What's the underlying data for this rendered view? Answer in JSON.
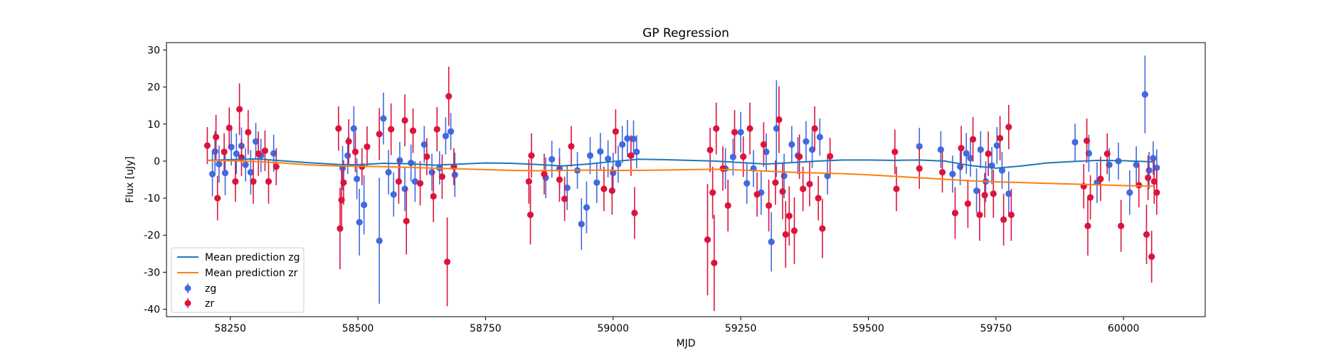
{
  "chart_data": {
    "type": "scatter",
    "title": "GP Regression",
    "xlabel": "MJD",
    "ylabel": "Flux [uJy]",
    "xlim": [
      58125,
      60160
    ],
    "ylim": [
      -42,
      32
    ],
    "xticks": [
      58250,
      58500,
      58750,
      59000,
      59250,
      59500,
      59750,
      60000
    ],
    "yticks": [
      -40,
      -30,
      -20,
      -10,
      0,
      10,
      20,
      30
    ],
    "grid": false,
    "legend_position": "lower-left",
    "legend": [
      {
        "label": "Mean prediction zg",
        "kind": "line",
        "color": "#1f77b4"
      },
      {
        "label": "Mean prediction zr",
        "kind": "line",
        "color": "#ff7f0e"
      },
      {
        "label": "zg",
        "kind": "errorbar",
        "color": "#4169e1"
      },
      {
        "label": "zr",
        "kind": "errorbar",
        "color": "#dc143c"
      }
    ],
    "lines": [
      {
        "name": "Mean prediction zg",
        "color": "#1f77b4",
        "x": [
          58205,
          58250,
          58300,
          58350,
          58400,
          58460,
          58500,
          58550,
          58600,
          58650,
          58700,
          58750,
          58800,
          58850,
          58900,
          58950,
          59000,
          59050,
          59100,
          59150,
          59200,
          59250,
          59300,
          59350,
          59400,
          59450,
          59500,
          59550,
          59600,
          59650,
          59700,
          59750,
          59800,
          59850,
          59900,
          59950,
          60000,
          60060
        ],
        "y": [
          0.2,
          0.4,
          0.6,
          0.1,
          -0.4,
          -0.9,
          -1.0,
          -0.6,
          -0.7,
          -1.1,
          -0.8,
          -0.5,
          -0.6,
          -0.9,
          -1.3,
          -0.8,
          -0.1,
          0.5,
          0.4,
          0.2,
          0.0,
          -0.4,
          -0.8,
          -0.4,
          0.0,
          0.3,
          0.3,
          0.2,
          0.3,
          0.0,
          -1.2,
          -1.9,
          -1.3,
          -0.5,
          -0.1,
          0.2,
          0.1,
          -0.2
        ]
      },
      {
        "name": "Mean prediction zr",
        "color": "#ff7f0e",
        "x": [
          58205,
          58250,
          58300,
          58350,
          58400,
          58460,
          58500,
          58550,
          58600,
          58650,
          58700,
          58750,
          58800,
          58850,
          58900,
          58950,
          59000,
          59050,
          59100,
          59150,
          59200,
          59250,
          59300,
          59350,
          59400,
          59450,
          59500,
          59550,
          59600,
          59650,
          59700,
          59750,
          59800,
          59850,
          59900,
          59950,
          60000,
          60060
        ],
        "y": [
          0.2,
          0.1,
          -0.1,
          -0.5,
          -1.0,
          -1.3,
          -1.4,
          -1.5,
          -1.7,
          -1.9,
          -2.1,
          -2.3,
          -2.5,
          -2.6,
          -2.5,
          -2.4,
          -2.5,
          -2.5,
          -2.4,
          -2.3,
          -2.2,
          -2.4,
          -2.7,
          -3.0,
          -3.2,
          -3.4,
          -3.7,
          -4.1,
          -4.5,
          -4.9,
          -5.3,
          -5.6,
          -5.8,
          -6.0,
          -6.2,
          -6.4,
          -6.6,
          -6.8
        ]
      }
    ],
    "series": [
      {
        "name": "zg",
        "color": "#4169e1",
        "points": [
          [
            58215,
            -3.5,
            6.0
          ],
          [
            58220,
            2.6,
            5.5
          ],
          [
            58228,
            -0.8,
            5.0
          ],
          [
            58240,
            -3.2,
            6.0
          ],
          [
            58252,
            3.8,
            5.0
          ],
          [
            58262,
            2.0,
            5.5
          ],
          [
            58272,
            4.1,
            5.0
          ],
          [
            58280,
            -1.0,
            4.5
          ],
          [
            58290,
            -3.0,
            6.0
          ],
          [
            58300,
            5.3,
            5.0
          ],
          [
            58310,
            1.5,
            4.5
          ],
          [
            58335,
            2.1,
            5.0
          ],
          [
            58470,
            -1.9,
            6.0
          ],
          [
            58480,
            1.5,
            5.0
          ],
          [
            58492,
            8.8,
            6.0
          ],
          [
            58498,
            -4.8,
            5.5
          ],
          [
            58503,
            -16.5,
            9.0
          ],
          [
            58512,
            -11.8,
            8.0
          ],
          [
            58542,
            -21.5,
            17.0
          ],
          [
            58550,
            11.5,
            7.0
          ],
          [
            58560,
            -3.0,
            6.0
          ],
          [
            58570,
            -9.0,
            6.0
          ],
          [
            58582,
            0.2,
            5.0
          ],
          [
            58592,
            -7.5,
            6.0
          ],
          [
            58604,
            -0.5,
            5.0
          ],
          [
            58612,
            -5.5,
            5.5
          ],
          [
            58630,
            4.5,
            5.0
          ],
          [
            58645,
            -3.0,
            5.0
          ],
          [
            58660,
            -1.8,
            4.5
          ],
          [
            58672,
            6.8,
            5.0
          ],
          [
            58682,
            8.0,
            5.0
          ],
          [
            58690,
            -3.7,
            6.0
          ],
          [
            58868,
            -4.5,
            5.5
          ],
          [
            58880,
            0.5,
            5.0
          ],
          [
            58895,
            -2.0,
            5.5
          ],
          [
            58910,
            -7.2,
            6.0
          ],
          [
            58930,
            -2.5,
            5.0
          ],
          [
            58938,
            -17.0,
            7.0
          ],
          [
            58948,
            -12.5,
            7.0
          ],
          [
            58955,
            1.5,
            5.0
          ],
          [
            58968,
            -5.8,
            5.5
          ],
          [
            58975,
            2.6,
            5.0
          ],
          [
            58990,
            0.6,
            5.0
          ],
          [
            59000,
            -3.2,
            5.5
          ],
          [
            59010,
            -0.8,
            5.0
          ],
          [
            59018,
            4.5,
            5.0
          ],
          [
            59028,
            6.1,
            5.0
          ],
          [
            59040,
            6.0,
            5.0
          ],
          [
            59046,
            2.5,
            4.5
          ],
          [
            59220,
            -2.0,
            5.5
          ],
          [
            59235,
            1.1,
            5.0
          ],
          [
            59250,
            7.8,
            5.5
          ],
          [
            59262,
            -6.0,
            5.5
          ],
          [
            59275,
            -2.0,
            5.0
          ],
          [
            59290,
            -8.5,
            6.0
          ],
          [
            59300,
            2.5,
            5.0
          ],
          [
            59310,
            -21.8,
            8.0
          ],
          [
            59320,
            8.8,
            13.0
          ],
          [
            59335,
            -4.0,
            6.0
          ],
          [
            59350,
            4.5,
            5.0
          ],
          [
            59362,
            1.5,
            5.0
          ],
          [
            59378,
            5.3,
            5.5
          ],
          [
            59390,
            3.1,
            5.0
          ],
          [
            59405,
            6.5,
            5.0
          ],
          [
            59420,
            -4.0,
            5.0
          ],
          [
            59600,
            4.0,
            5.0
          ],
          [
            59642,
            3.1,
            5.0
          ],
          [
            59665,
            -3.5,
            5.0
          ],
          [
            59680,
            -1.5,
            5.0
          ],
          [
            59692,
            2.1,
            5.5
          ],
          [
            59700,
            0.8,
            5.0
          ],
          [
            59712,
            -8.0,
            6.0
          ],
          [
            59720,
            3.1,
            5.0
          ],
          [
            59730,
            -5.5,
            5.5
          ],
          [
            59742,
            -1.2,
            5.0
          ],
          [
            59752,
            4.2,
            5.0
          ],
          [
            59762,
            -2.5,
            5.0
          ],
          [
            59775,
            -8.8,
            6.0
          ],
          [
            59905,
            5.1,
            5.0
          ],
          [
            59932,
            2.1,
            5.0
          ],
          [
            59948,
            -5.8,
            5.5
          ],
          [
            59972,
            -1.0,
            4.5
          ],
          [
            59990,
            0.0,
            5.0
          ],
          [
            60012,
            -8.5,
            6.0
          ],
          [
            60025,
            -1.0,
            5.0
          ],
          [
            60042,
            18.0,
            10.5
          ],
          [
            60050,
            -2.5,
            5.0
          ],
          [
            60058,
            0.8,
            4.5
          ],
          [
            60065,
            -1.8,
            5.0
          ]
        ]
      },
      {
        "name": "zr",
        "color": "#dc143c",
        "points": [
          [
            58205,
            4.2,
            5.0
          ],
          [
            58222,
            6.5,
            6.0
          ],
          [
            58225,
            -10.0,
            6.0
          ],
          [
            58238,
            2.5,
            5.0
          ],
          [
            58248,
            9.0,
            5.5
          ],
          [
            58260,
            -5.5,
            5.5
          ],
          [
            58268,
            14.0,
            7.0
          ],
          [
            58272,
            1.0,
            5.0
          ],
          [
            58285,
            7.8,
            6.0
          ],
          [
            58295,
            -5.5,
            6.0
          ],
          [
            58305,
            2.0,
            6.0
          ],
          [
            58318,
            2.8,
            5.5
          ],
          [
            58325,
            -5.5,
            6.0
          ],
          [
            58340,
            -1.5,
            5.0
          ],
          [
            58462,
            8.8,
            6.0
          ],
          [
            58465,
            -18.2,
            11.0
          ],
          [
            58468,
            -10.5,
            8.0
          ],
          [
            58472,
            -5.8,
            6.0
          ],
          [
            58482,
            5.3,
            6.0
          ],
          [
            58495,
            2.5,
            5.5
          ],
          [
            58508,
            -1.5,
            5.0
          ],
          [
            58518,
            3.9,
            5.5
          ],
          [
            58542,
            7.3,
            7.0
          ],
          [
            58565,
            8.6,
            7.0
          ],
          [
            58580,
            -5.5,
            6.0
          ],
          [
            58592,
            11.0,
            7.0
          ],
          [
            58595,
            -16.2,
            9.0
          ],
          [
            58608,
            8.2,
            6.0
          ],
          [
            58622,
            -6.0,
            6.0
          ],
          [
            58635,
            1.2,
            5.0
          ],
          [
            58648,
            -9.5,
            7.0
          ],
          [
            58655,
            8.6,
            6.0
          ],
          [
            58665,
            -4.2,
            6.0
          ],
          [
            58675,
            -27.2,
            12.0
          ],
          [
            58678,
            17.5,
            8.0
          ],
          [
            58688,
            -1.5,
            5.0
          ],
          [
            58835,
            -5.5,
            6.0
          ],
          [
            58838,
            -14.5,
            8.0
          ],
          [
            58840,
            1.5,
            6.0
          ],
          [
            58865,
            -3.5,
            5.5
          ],
          [
            58895,
            -5.0,
            6.0
          ],
          [
            58905,
            -10.2,
            6.0
          ],
          [
            58918,
            4.0,
            5.5
          ],
          [
            58982,
            -7.5,
            6.0
          ],
          [
            58998,
            -8.0,
            6.5
          ],
          [
            59005,
            8.0,
            6.0
          ],
          [
            59035,
            1.5,
            5.5
          ],
          [
            59042,
            -14.0,
            7.0
          ],
          [
            59185,
            -21.2,
            15.0
          ],
          [
            59190,
            3.0,
            6.0
          ],
          [
            59195,
            -8.5,
            7.0
          ],
          [
            59198,
            -27.5,
            13.0
          ],
          [
            59202,
            8.8,
            7.0
          ],
          [
            59215,
            -2.0,
            6.0
          ],
          [
            59225,
            -12.0,
            7.0
          ],
          [
            59238,
            7.8,
            6.0
          ],
          [
            59255,
            1.2,
            5.5
          ],
          [
            59268,
            8.8,
            7.0
          ],
          [
            59282,
            -9.0,
            6.0
          ],
          [
            59295,
            4.5,
            6.0
          ],
          [
            59305,
            -12.0,
            7.0
          ],
          [
            59318,
            -5.8,
            6.0
          ],
          [
            59325,
            11.2,
            9.0
          ],
          [
            59332,
            -8.2,
            7.5
          ],
          [
            59338,
            -19.8,
            9.0
          ],
          [
            59345,
            -14.8,
            8.0
          ],
          [
            59355,
            -18.8,
            9.0
          ],
          [
            59365,
            1.2,
            6.0
          ],
          [
            59372,
            -7.5,
            6.0
          ],
          [
            59385,
            -6.2,
            6.0
          ],
          [
            59395,
            8.8,
            6.0
          ],
          [
            59402,
            -10.0,
            6.0
          ],
          [
            59410,
            -18.2,
            8.0
          ],
          [
            59425,
            1.3,
            5.0
          ],
          [
            59552,
            2.5,
            6.0
          ],
          [
            59555,
            -7.5,
            6.0
          ],
          [
            59600,
            -2.0,
            5.5
          ],
          [
            59645,
            -3.0,
            5.5
          ],
          [
            59670,
            -14.0,
            7.0
          ],
          [
            59682,
            3.5,
            6.0
          ],
          [
            59695,
            -11.5,
            6.5
          ],
          [
            59705,
            5.9,
            6.0
          ],
          [
            59718,
            -14.5,
            7.0
          ],
          [
            59728,
            -9.2,
            6.0
          ],
          [
            59735,
            2.0,
            6.0
          ],
          [
            59745,
            -8.8,
            6.5
          ],
          [
            59758,
            6.2,
            6.0
          ],
          [
            59765,
            -15.8,
            7.0
          ],
          [
            59775,
            9.2,
            6.0
          ],
          [
            59780,
            -14.5,
            7.0
          ],
          [
            59922,
            -6.8,
            6.0
          ],
          [
            59928,
            5.5,
            6.0
          ],
          [
            59930,
            -17.5,
            8.0
          ],
          [
            59935,
            -9.8,
            6.0
          ],
          [
            59955,
            -4.8,
            6.0
          ],
          [
            59968,
            2.0,
            5.5
          ],
          [
            59995,
            -17.5,
            7.0
          ],
          [
            60030,
            -6.5,
            6.0
          ],
          [
            60045,
            -19.8,
            8.0
          ],
          [
            60048,
            -4.5,
            6.0
          ],
          [
            60055,
            -25.8,
            7.0
          ],
          [
            60060,
            -5.5,
            6.0
          ],
          [
            60065,
            -8.5,
            6.0
          ]
        ]
      }
    ]
  }
}
